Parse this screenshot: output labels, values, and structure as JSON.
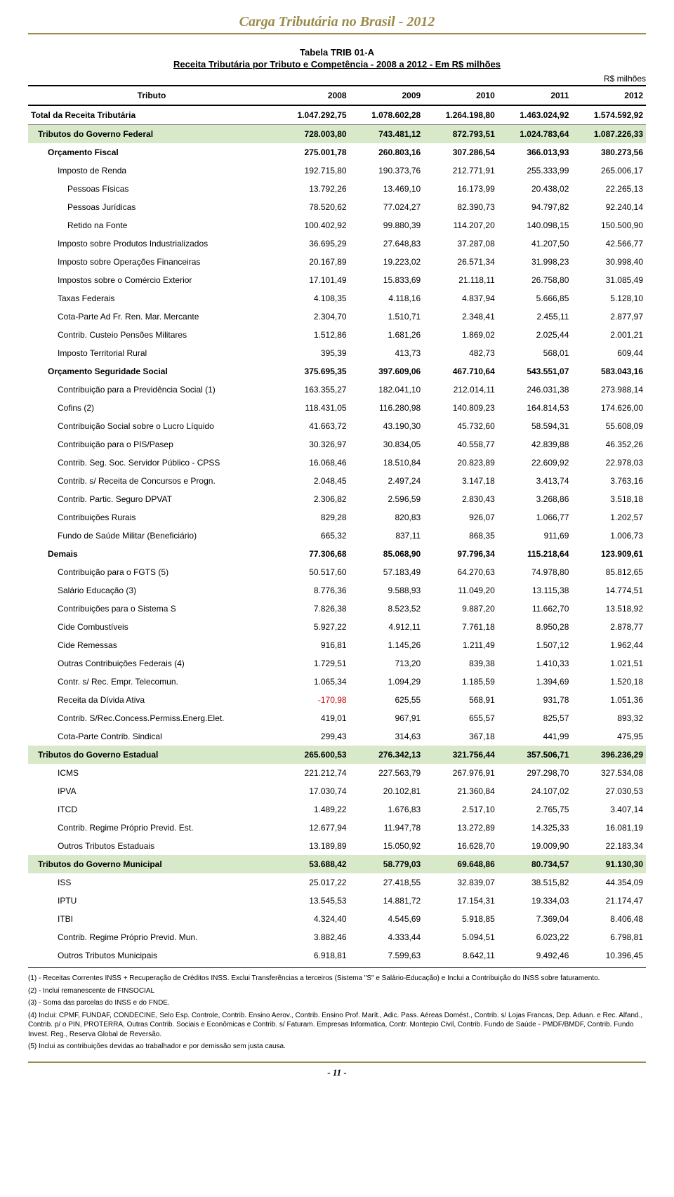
{
  "header": "Carga Tributária no Brasil - 2012",
  "table_label": "Tabela TRIB 01-A",
  "table_title": "Receita Tributária por Tributo e Competência - 2008 a 2012 - Em R$ milhões",
  "unit_label": "R$ milhões",
  "columns": [
    "Tributo",
    "2008",
    "2009",
    "2010",
    "2011",
    "2012"
  ],
  "rows": [
    {
      "lvl": 0,
      "hl": false,
      "label": "Total da Receita Tributária",
      "v": [
        "1.047.292,75",
        "1.078.602,28",
        "1.264.198,80",
        "1.463.024,92",
        "1.574.592,92"
      ]
    },
    {
      "lvl": 1,
      "hl": true,
      "label": "Tributos do Governo Federal",
      "v": [
        "728.003,80",
        "743.481,12",
        "872.793,51",
        "1.024.783,64",
        "1.087.226,33"
      ]
    },
    {
      "lvl": 2,
      "hl": false,
      "bold": true,
      "label": "Orçamento Fiscal",
      "v": [
        "275.001,78",
        "260.803,16",
        "307.286,54",
        "366.013,93",
        "380.273,56"
      ]
    },
    {
      "lvl": 3,
      "hl": false,
      "label": "Imposto de Renda",
      "v": [
        "192.715,80",
        "190.373,76",
        "212.771,91",
        "255.333,99",
        "265.006,17"
      ]
    },
    {
      "lvl": 4,
      "hl": false,
      "label": "Pessoas Físicas",
      "v": [
        "13.792,26",
        "13.469,10",
        "16.173,99",
        "20.438,02",
        "22.265,13"
      ]
    },
    {
      "lvl": 4,
      "hl": false,
      "label": "Pessoas Jurídicas",
      "v": [
        "78.520,62",
        "77.024,27",
        "82.390,73",
        "94.797,82",
        "92.240,14"
      ]
    },
    {
      "lvl": 4,
      "hl": false,
      "label": "Retido na Fonte",
      "v": [
        "100.402,92",
        "99.880,39",
        "114.207,20",
        "140.098,15",
        "150.500,90"
      ]
    },
    {
      "lvl": 3,
      "hl": false,
      "label": "Imposto sobre Produtos Industrializados",
      "v": [
        "36.695,29",
        "27.648,83",
        "37.287,08",
        "41.207,50",
        "42.566,77"
      ]
    },
    {
      "lvl": 3,
      "hl": false,
      "label": "Imposto sobre Operações Financeiras",
      "v": [
        "20.167,89",
        "19.223,02",
        "26.571,34",
        "31.998,23",
        "30.998,40"
      ]
    },
    {
      "lvl": 3,
      "hl": false,
      "label": "Impostos sobre o Comércio Exterior",
      "v": [
        "17.101,49",
        "15.833,69",
        "21.118,11",
        "26.758,80",
        "31.085,49"
      ]
    },
    {
      "lvl": 3,
      "hl": false,
      "label": "Taxas Federais",
      "v": [
        "4.108,35",
        "4.118,16",
        "4.837,94",
        "5.666,85",
        "5.128,10"
      ]
    },
    {
      "lvl": 3,
      "hl": false,
      "label": "Cota-Parte Ad Fr. Ren. Mar. Mercante",
      "v": [
        "2.304,70",
        "1.510,71",
        "2.348,41",
        "2.455,11",
        "2.877,97"
      ]
    },
    {
      "lvl": 3,
      "hl": false,
      "label": "Contrib. Custeio Pensões Militares",
      "v": [
        "1.512,86",
        "1.681,26",
        "1.869,02",
        "2.025,44",
        "2.001,21"
      ]
    },
    {
      "lvl": 3,
      "hl": false,
      "label": "Imposto Territorial Rural",
      "v": [
        "395,39",
        "413,73",
        "482,73",
        "568,01",
        "609,44"
      ]
    },
    {
      "lvl": 2,
      "hl": false,
      "bold": true,
      "label": "Orçamento Seguridade Social",
      "v": [
        "375.695,35",
        "397.609,06",
        "467.710,64",
        "543.551,07",
        "583.043,16"
      ]
    },
    {
      "lvl": 3,
      "hl": false,
      "label": "Contribuição para a Previdência Social (1)",
      "v": [
        "163.355,27",
        "182.041,10",
        "212.014,11",
        "246.031,38",
        "273.988,14"
      ]
    },
    {
      "lvl": 3,
      "hl": false,
      "label": "Cofins (2)",
      "v": [
        "118.431,05",
        "116.280,98",
        "140.809,23",
        "164.814,53",
        "174.626,00"
      ]
    },
    {
      "lvl": 3,
      "hl": false,
      "label": "Contribuição Social sobre o Lucro Líquido",
      "v": [
        "41.663,72",
        "43.190,30",
        "45.732,60",
        "58.594,31",
        "55.608,09"
      ]
    },
    {
      "lvl": 3,
      "hl": false,
      "label": "Contribuição para o PIS/Pasep",
      "v": [
        "30.326,97",
        "30.834,05",
        "40.558,77",
        "42.839,88",
        "46.352,26"
      ]
    },
    {
      "lvl": 3,
      "hl": false,
      "label": "Contrib. Seg. Soc. Servidor Público - CPSS",
      "v": [
        "16.068,46",
        "18.510,84",
        "20.823,89",
        "22.609,92",
        "22.978,03"
      ]
    },
    {
      "lvl": 3,
      "hl": false,
      "label": "Contrib. s/ Receita de Concursos e Progn.",
      "v": [
        "2.048,45",
        "2.497,24",
        "3.147,18",
        "3.413,74",
        "3.763,16"
      ]
    },
    {
      "lvl": 3,
      "hl": false,
      "label": "Contrib. Partic. Seguro DPVAT",
      "v": [
        "2.306,82",
        "2.596,59",
        "2.830,43",
        "3.268,86",
        "3.518,18"
      ]
    },
    {
      "lvl": 3,
      "hl": false,
      "label": "Contribuições Rurais",
      "v": [
        "829,28",
        "820,83",
        "926,07",
        "1.066,77",
        "1.202,57"
      ]
    },
    {
      "lvl": 3,
      "hl": false,
      "label": "Fundo de Saúde Militar (Beneficiário)",
      "v": [
        "665,32",
        "837,11",
        "868,35",
        "911,69",
        "1.006,73"
      ]
    },
    {
      "lvl": 2,
      "hl": false,
      "bold": true,
      "label": "Demais",
      "v": [
        "77.306,68",
        "85.068,90",
        "97.796,34",
        "115.218,64",
        "123.909,61"
      ]
    },
    {
      "lvl": 3,
      "hl": false,
      "label": "Contribuição para o FGTS (5)",
      "v": [
        "50.517,60",
        "57.183,49",
        "64.270,63",
        "74.978,80",
        "85.812,65"
      ]
    },
    {
      "lvl": 3,
      "hl": false,
      "label": "Salário Educação (3)",
      "v": [
        "8.776,36",
        "9.588,93",
        "11.049,20",
        "13.115,38",
        "14.774,51"
      ]
    },
    {
      "lvl": 3,
      "hl": false,
      "label": "Contribuições para o Sistema S",
      "v": [
        "7.826,38",
        "8.523,52",
        "9.887,20",
        "11.662,70",
        "13.518,92"
      ]
    },
    {
      "lvl": 3,
      "hl": false,
      "label": "Cide Combustíveis",
      "v": [
        "5.927,22",
        "4.912,11",
        "7.761,18",
        "8.950,28",
        "2.878,77"
      ]
    },
    {
      "lvl": 3,
      "hl": false,
      "label": "Cide Remessas",
      "v": [
        "916,81",
        "1.145,26",
        "1.211,49",
        "1.507,12",
        "1.962,44"
      ]
    },
    {
      "lvl": 3,
      "hl": false,
      "label": "Outras Contribuições Federais (4)",
      "v": [
        "1.729,51",
        "713,20",
        "839,38",
        "1.410,33",
        "1.021,51"
      ]
    },
    {
      "lvl": 3,
      "hl": false,
      "label": "Contr. s/ Rec. Empr. Telecomun.",
      "v": [
        "1.065,34",
        "1.094,29",
        "1.185,59",
        "1.394,69",
        "1.520,18"
      ]
    },
    {
      "lvl": 3,
      "hl": false,
      "label": "Receita da Dívida Ativa",
      "v": [
        "-170,98",
        "625,55",
        "568,91",
        "931,78",
        "1.051,36"
      ],
      "neg": [
        true,
        false,
        false,
        false,
        false
      ]
    },
    {
      "lvl": 3,
      "hl": false,
      "label": "Contrib. S/Rec.Concess.Permiss.Energ.Elet.",
      "v": [
        "419,01",
        "967,91",
        "655,57",
        "825,57",
        "893,32"
      ]
    },
    {
      "lvl": 3,
      "hl": false,
      "label": "Cota-Parte Contrib. Sindical",
      "v": [
        "299,43",
        "314,63",
        "367,18",
        "441,99",
        "475,95"
      ]
    },
    {
      "lvl": 1,
      "hl": true,
      "label": "Tributos do Governo Estadual",
      "v": [
        "265.600,53",
        "276.342,13",
        "321.756,44",
        "357.506,71",
        "396.236,29"
      ]
    },
    {
      "lvl": 3,
      "hl": false,
      "label": "ICMS",
      "v": [
        "221.212,74",
        "227.563,79",
        "267.976,91",
        "297.298,70",
        "327.534,08"
      ]
    },
    {
      "lvl": 3,
      "hl": false,
      "label": "IPVA",
      "v": [
        "17.030,74",
        "20.102,81",
        "21.360,84",
        "24.107,02",
        "27.030,53"
      ]
    },
    {
      "lvl": 3,
      "hl": false,
      "label": "ITCD",
      "v": [
        "1.489,22",
        "1.676,83",
        "2.517,10",
        "2.765,75",
        "3.407,14"
      ]
    },
    {
      "lvl": 3,
      "hl": false,
      "label": "Contrib. Regime Próprio Previd. Est.",
      "v": [
        "12.677,94",
        "11.947,78",
        "13.272,89",
        "14.325,33",
        "16.081,19"
      ]
    },
    {
      "lvl": 3,
      "hl": false,
      "label": "Outros Tributos Estaduais",
      "v": [
        "13.189,89",
        "15.050,92",
        "16.628,70",
        "19.009,90",
        "22.183,34"
      ]
    },
    {
      "lvl": 1,
      "hl": true,
      "label": "Tributos do Governo Municipal",
      "v": [
        "53.688,42",
        "58.779,03",
        "69.648,86",
        "80.734,57",
        "91.130,30"
      ]
    },
    {
      "lvl": 3,
      "hl": false,
      "label": "ISS",
      "v": [
        "25.017,22",
        "27.418,55",
        "32.839,07",
        "38.515,82",
        "44.354,09"
      ]
    },
    {
      "lvl": 3,
      "hl": false,
      "label": "IPTU",
      "v": [
        "13.545,53",
        "14.881,72",
        "17.154,31",
        "19.334,03",
        "21.174,47"
      ]
    },
    {
      "lvl": 3,
      "hl": false,
      "label": "ITBI",
      "v": [
        "4.324,40",
        "4.545,69",
        "5.918,85",
        "7.369,04",
        "8.406,48"
      ]
    },
    {
      "lvl": 3,
      "hl": false,
      "label": "Contrib. Regime Próprio Previd. Mun.",
      "v": [
        "3.882,46",
        "4.333,44",
        "5.094,51",
        "6.023,22",
        "6.798,81"
      ]
    },
    {
      "lvl": 3,
      "hl": false,
      "label": "Outros Tributos Municipais",
      "v": [
        "6.918,81",
        "7.599,63",
        "8.642,11",
        "9.492,46",
        "10.396,45"
      ]
    }
  ],
  "footnotes": [
    "(1) - Receitas Correntes INSS + Recuperação de Créditos INSS. Exclui Transferências a terceiros (Sistema \"S\" e Salário-Educação) e Inclui a Contribuição do INSS sobre faturamento.",
    "(2) - Inclui remanescente de FINSOCIAL",
    "(3) - Soma das parcelas do INSS e do FNDE.",
    "(4) Inclui: CPMF, FUNDAF, CONDECINE, Selo Esp. Controle, Contrib. Ensino Aerov., Contrib. Ensino Prof. Marít., Adic. Pass. Aéreas Domést., Contrib. s/ Lojas Francas, Dep. Aduan. e Rec. Alfand., Contrib. p/ o PIN, PROTERRA, Outras Contrib. Sociais e Econômicas e Contrib. s/ Faturam. Empresas Informatica, Contr. Montepio Civil, Contrib. Fundo de Saúde - PMDF/BMDF, Contrib. Fundo Invest. Reg., Reserva Global de Reversão.",
    "(5)  Inclui as contribuições devidas ao trabalhador e por demissão sem justa causa."
  ],
  "page_number": "- 11 -",
  "style": {
    "header_color": "#9a8a4a",
    "highlight_bg": "#d7e9c9",
    "neg_color": "#c00000",
    "font_size_body": 12,
    "font_size_foot": 10
  }
}
